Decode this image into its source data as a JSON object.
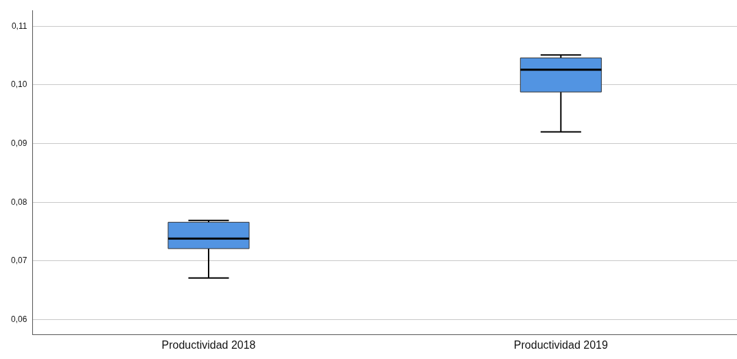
{
  "chart_data": {
    "type": "box",
    "categories": [
      "Productividad 2018",
      "Productividad 2019"
    ],
    "boxes": [
      {
        "low": 0.0671,
        "q1": 0.0721,
        "median": 0.0738,
        "q3": 0.0766,
        "high": 0.0769
      },
      {
        "low": 0.092,
        "q1": 0.0988,
        "median": 0.1026,
        "q3": 0.1046,
        "high": 0.1051
      }
    ],
    "color": "#5294e2",
    "ylim": [
      0.0574,
      0.1127
    ],
    "yticks": [
      {
        "value": 0.06,
        "label": "0,06"
      },
      {
        "value": 0.07,
        "label": "0,07"
      },
      {
        "value": 0.08,
        "label": "0,08"
      },
      {
        "value": 0.09,
        "label": "0,09"
      },
      {
        "value": 0.1,
        "label": "0,10"
      },
      {
        "value": 0.11,
        "label": "0,11"
      }
    ],
    "grid": "y"
  }
}
